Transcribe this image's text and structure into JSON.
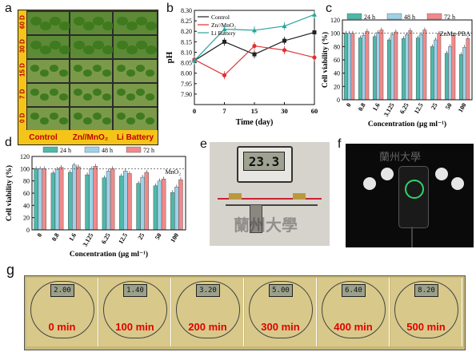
{
  "panels": {
    "a": "a",
    "b": "b",
    "c": "c",
    "d": "d",
    "e": "e",
    "f": "f",
    "g": "g"
  },
  "panel_a": {
    "rows": [
      "60 D",
      "30 D",
      "15 D",
      "7 D",
      "0 D"
    ],
    "columns": [
      "Control",
      "Zn//MnO₂",
      "Li Battery"
    ]
  },
  "panel_e": {
    "display_reading": "23.3"
  },
  "panel_g": {
    "frames": [
      {
        "time": "0 min",
        "display": "2.00"
      },
      {
        "time": "100 min",
        "display": "1.40"
      },
      {
        "time": "200 min",
        "display": "3.20"
      },
      {
        "time": "300 min",
        "display": "5.00"
      },
      {
        "time": "400 min",
        "display": "6.40"
      },
      {
        "time": "500 min",
        "display": "8.20"
      }
    ]
  },
  "colors": {
    "control": "#222222",
    "znmno2": "#e03030",
    "li": "#2aa39a",
    "c24": "#4fb8a8",
    "c48": "#9ed1e8",
    "c72": "#f08a8a"
  },
  "chart_data": [
    {
      "type": "line",
      "xlabel": "Time (day)",
      "ylabel": "pH",
      "x": [
        0,
        7,
        15,
        30,
        60
      ],
      "ylim": [
        7.85,
        8.3
      ],
      "yticks": [
        "7.90",
        "7.95",
        "8.00",
        "8.05",
        "8.10",
        "8.15",
        "8.20",
        "8.25",
        "8.30"
      ],
      "xticks": [
        "0",
        "7",
        "15",
        "30",
        "60"
      ],
      "legend_position": "top-left",
      "series": [
        {
          "name": "Control",
          "values": [
            8.06,
            8.15,
            8.09,
            8.155,
            8.195
          ]
        },
        {
          "name": "Zn//MnO₂",
          "values": [
            8.065,
            7.99,
            8.13,
            8.11,
            8.075
          ]
        },
        {
          "name": "Li Battery",
          "values": [
            8.06,
            8.21,
            8.205,
            8.225,
            8.28
          ]
        }
      ]
    },
    {
      "type": "bar",
      "xlabel": "Concentration (μg ml⁻¹)",
      "ylabel": "Cell viability (%)",
      "annotation": "ZnMn-PBA",
      "categories": [
        "0",
        "0.8",
        "1.6",
        "3.125",
        "6.25",
        "12.5",
        "25",
        "50",
        "100"
      ],
      "ylim": [
        0,
        120
      ],
      "yticks": [
        "0",
        "20",
        "40",
        "60",
        "80",
        "100",
        "120"
      ],
      "legend_position": "top",
      "series": [
        {
          "name": "24 h",
          "values": [
            100,
            93,
            95,
            90,
            92,
            93,
            80,
            70,
            68
          ]
        },
        {
          "name": "48 h",
          "values": [
            100,
            97,
            101,
            98,
            98,
            98,
            90,
            80,
            79
          ]
        },
        {
          "name": "72 h",
          "values": [
            100,
            103,
            105,
            102,
            104,
            105,
            100,
            97,
            92
          ]
        }
      ]
    },
    {
      "type": "bar",
      "xlabel": "Concentration (μg ml⁻¹)",
      "ylabel": "Cell viability (%)",
      "annotation": "MnO₂",
      "categories": [
        "0",
        "0.8",
        "1.6",
        "3.125",
        "6.25",
        "12.5",
        "25",
        "50",
        "100"
      ],
      "ylim": [
        0,
        120
      ],
      "yticks": [
        "0",
        "20",
        "40",
        "60",
        "80",
        "100",
        "120"
      ],
      "legend_position": "top",
      "series": [
        {
          "name": "24 h",
          "values": [
            100,
            93,
            94,
            90,
            85,
            88,
            76,
            72,
            61
          ]
        },
        {
          "name": "48 h",
          "values": [
            100,
            99,
            106,
            100,
            96,
            96,
            86,
            80,
            70
          ]
        },
        {
          "name": "72 h",
          "values": [
            100,
            102,
            103,
            104,
            100,
            92,
            94,
            83,
            82
          ]
        }
      ]
    }
  ]
}
